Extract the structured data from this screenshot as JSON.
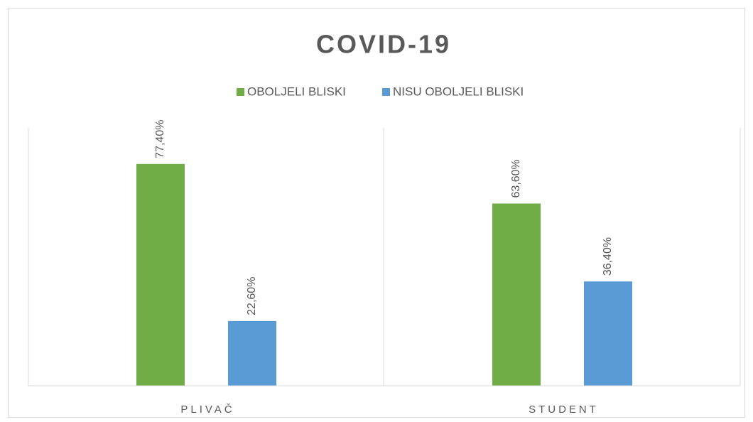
{
  "chart_data": {
    "type": "bar",
    "title": "COVID-19",
    "categories": [
      "PLIVAČ",
      "STUDENT"
    ],
    "series": [
      {
        "name": "OBOLJELI BLISKI",
        "color": "#70ad47",
        "values": [
          77.4,
          63.6
        ],
        "value_labels": [
          "77,40%",
          "63,60%"
        ]
      },
      {
        "name": "NISU OBOLJELI BLISKI",
        "color": "#5b9bd5",
        "values": [
          22.6,
          36.4
        ],
        "value_labels": [
          "22,60%",
          "36,40%"
        ]
      }
    ],
    "ylim": [
      0,
      90
    ],
    "legend": "top"
  }
}
